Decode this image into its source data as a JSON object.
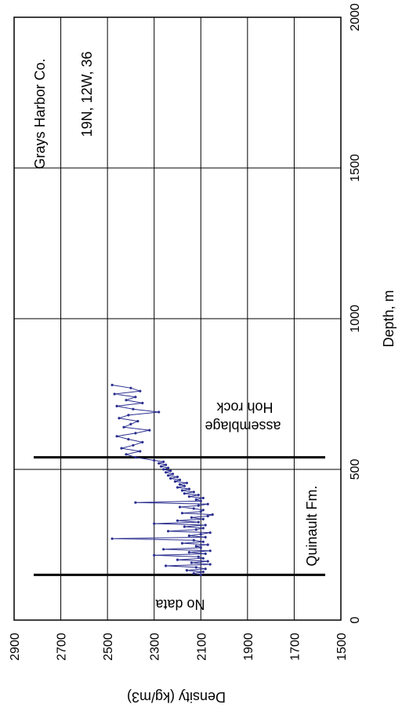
{
  "chart_data": {
    "type": "line",
    "orientation": "rotated-90-clockwise",
    "title": "",
    "xlabel": "Depth, m",
    "ylabel": "Density (kg/m3)",
    "xlim": [
      0,
      2000
    ],
    "ylim": [
      1500,
      2900
    ],
    "x_ticks": [
      0,
      500,
      1000,
      1500,
      2000
    ],
    "y_ticks": [
      1500,
      1700,
      1900,
      2100,
      2300,
      2500,
      2700,
      2900
    ],
    "grid": true,
    "series": [
      {
        "color": "#2b2f8f",
        "x": [
          150,
          155,
          160,
          165,
          170,
          175,
          180,
          185,
          190,
          195,
          200,
          205,
          210,
          215,
          220,
          225,
          230,
          235,
          240,
          245,
          250,
          255,
          260,
          265,
          270,
          275,
          280,
          285,
          290,
          295,
          300,
          305,
          310,
          315,
          320,
          325,
          330,
          335,
          340,
          345,
          350,
          355,
          360,
          365,
          370,
          375,
          380,
          385,
          390,
          395,
          400,
          405,
          410,
          415,
          420,
          425,
          430,
          435,
          440,
          445,
          450,
          455,
          460,
          465,
          470,
          475,
          480,
          485,
          490,
          495,
          500,
          505,
          510,
          515,
          520,
          525,
          530,
          540,
          550,
          560,
          570,
          580,
          590,
          600,
          610,
          620,
          630,
          640,
          650,
          660,
          670,
          680,
          690,
          700,
          710,
          720,
          730,
          740,
          750,
          760,
          770,
          780
        ],
        "y": [
          2100,
          2130,
          2090,
          2160,
          2080,
          2120,
          2250,
          2060,
          2140,
          2070,
          2200,
          2090,
          2110,
          2300,
          2080,
          2150,
          2060,
          2260,
          2100,
          2120,
          2070,
          2180,
          2090,
          2130,
          2480,
          2080,
          2150,
          2100,
          2060,
          2240,
          2120,
          2090,
          2170,
          2080,
          2300,
          2110,
          2200,
          2090,
          2140,
          2070,
          2050,
          2180,
          2100,
          2090,
          2130,
          2190,
          2110,
          2070,
          2380,
          2100,
          2120,
          2090,
          2150,
          2110,
          2170,
          2130,
          2180,
          2150,
          2200,
          2170,
          2190,
          2160,
          2210,
          2190,
          2230,
          2200,
          2240,
          2220,
          2250,
          2230,
          2260,
          2240,
          2270,
          2250,
          2280,
          2260,
          2300,
          2380,
          2420,
          2360,
          2440,
          2390,
          2350,
          2410,
          2460,
          2380,
          2320,
          2430,
          2400,
          2370,
          2450,
          2410,
          2280,
          2390,
          2460,
          2350,
          2420,
          2380,
          2470,
          2360,
          2400,
          2480
        ]
      }
    ],
    "annotations": {
      "boundaries_depth": [
        150,
        540
      ],
      "region_labels": [
        "No data",
        "Quinault Fm.",
        "Hoh rock assemblage"
      ],
      "location_county": "Grays Harbor Co.",
      "location_township": "19N, 12W, 36"
    }
  }
}
